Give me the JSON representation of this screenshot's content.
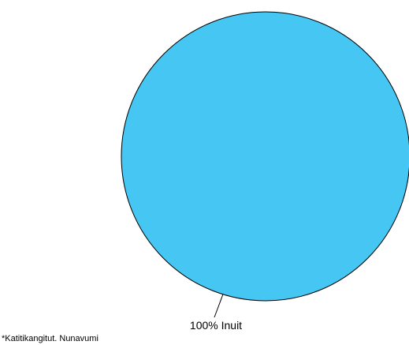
{
  "chart_data": {
    "type": "pie",
    "slices": [
      {
        "label": "100% Inuit",
        "category": "Inuit",
        "value": 100,
        "color": "#45c6f3"
      }
    ],
    "outline_color": "#000000"
  },
  "footnote": "*Katitikangitut. Nunavumi"
}
